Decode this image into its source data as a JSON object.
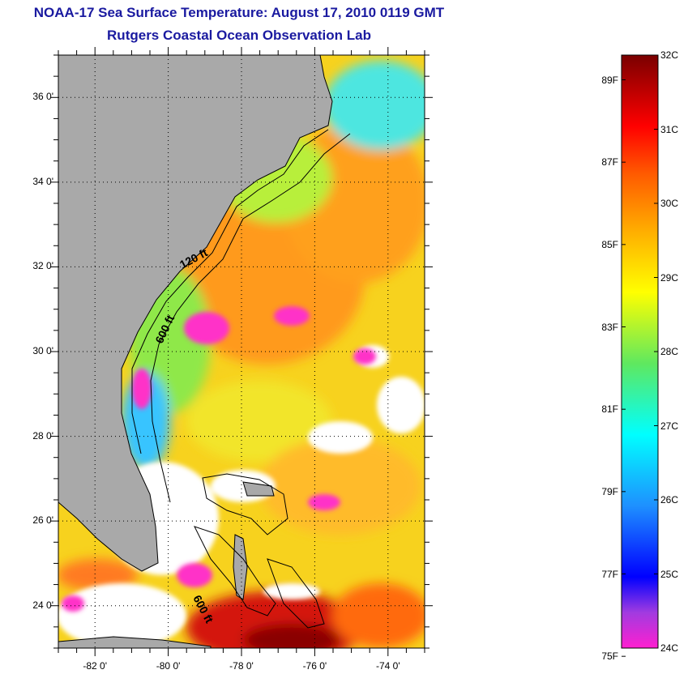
{
  "title": {
    "line1": "NOAA-17 Sea Surface Temperature:  August 17, 2010 0119 GMT",
    "line2": "Rutgers Coastal Ocean Observation Lab"
  },
  "map": {
    "lat_ticks": [
      {
        "value": 36,
        "label": "36 0'"
      },
      {
        "value": 34,
        "label": "34 0'"
      },
      {
        "value": 32,
        "label": "32 0'"
      },
      {
        "value": 30,
        "label": "30 0'"
      },
      {
        "value": 28,
        "label": "28 0'"
      },
      {
        "value": 26,
        "label": "26 0'"
      },
      {
        "value": 24,
        "label": "24 0'"
      }
    ],
    "lon_ticks": [
      {
        "value": -82,
        "label": "-82 0'"
      },
      {
        "value": -80,
        "label": "-80 0'"
      },
      {
        "value": -78,
        "label": "-78 0'"
      },
      {
        "value": -76,
        "label": "-76 0'"
      },
      {
        "value": -74,
        "label": "-74 0'"
      }
    ],
    "lon_range": [
      -83,
      -73
    ],
    "lat_range": [
      23,
      37
    ],
    "contour_labels": [
      "120 ft",
      "600 ft",
      "600 ft"
    ],
    "colors": {
      "land": "#a9a9a9",
      "cloud": "#ffffff",
      "warm_max": "#7a0000",
      "cool_min": "#ff1fd0"
    }
  },
  "colorbar": {
    "fahrenheit": [
      "89F",
      "87F",
      "85F",
      "83F",
      "81F",
      "79F",
      "77F",
      "75F"
    ],
    "celsius": [
      "32C",
      "31C",
      "30C",
      "29C",
      "28C",
      "27C",
      "26C",
      "25C",
      "24C"
    ]
  }
}
